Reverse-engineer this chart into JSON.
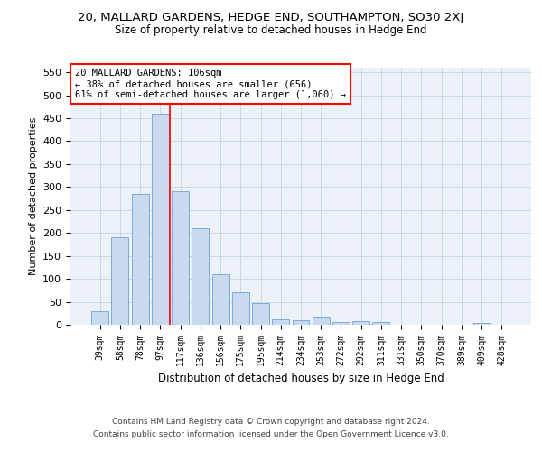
{
  "title": "20, MALLARD GARDENS, HEDGE END, SOUTHAMPTON, SO30 2XJ",
  "subtitle": "Size of property relative to detached houses in Hedge End",
  "xlabel": "Distribution of detached houses by size in Hedge End",
  "ylabel": "Number of detached properties",
  "bar_color": "#c9d9f0",
  "bar_edge_color": "#7aabe0",
  "categories": [
    "39sqm",
    "58sqm",
    "78sqm",
    "97sqm",
    "117sqm",
    "136sqm",
    "156sqm",
    "175sqm",
    "195sqm",
    "214sqm",
    "234sqm",
    "253sqm",
    "272sqm",
    "292sqm",
    "311sqm",
    "331sqm",
    "350sqm",
    "370sqm",
    "389sqm",
    "409sqm",
    "428sqm"
  ],
  "values": [
    30,
    190,
    285,
    460,
    290,
    210,
    110,
    70,
    47,
    11,
    10,
    18,
    5,
    7,
    5,
    0,
    0,
    0,
    0,
    3,
    0
  ],
  "ylim": [
    0,
    560
  ],
  "yticks": [
    0,
    50,
    100,
    150,
    200,
    250,
    300,
    350,
    400,
    450,
    500,
    550
  ],
  "vline_x": 3.5,
  "annotation_text": "20 MALLARD GARDENS: 106sqm\n← 38% of detached houses are smaller (656)\n61% of semi-detached houses are larger (1,060) →",
  "footer1": "Contains HM Land Registry data © Crown copyright and database right 2024.",
  "footer2": "Contains public sector information licensed under the Open Government Licence v3.0.",
  "grid_color": "#cdd7e8",
  "background_color": "#edf1f8"
}
